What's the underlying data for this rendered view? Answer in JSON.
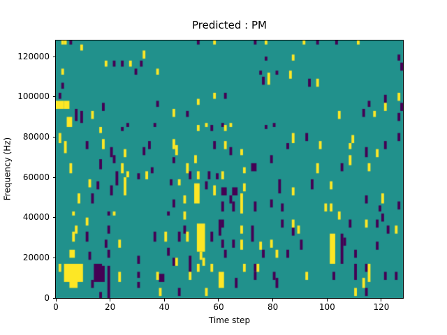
{
  "chart_data": {
    "type": "heatmap",
    "title": "Predicted : PM",
    "xlabel": "Time step",
    "ylabel": "Frequency (Hz)",
    "x_ticks": [
      0,
      20,
      40,
      60,
      80,
      100,
      120
    ],
    "y_ticks": [
      0,
      20000,
      40000,
      60000,
      80000,
      100000,
      120000
    ],
    "x_max": 128,
    "y_max": 128000,
    "n_time_steps": 128,
    "n_freq_bins": 128,
    "freq_bin_hz": 1000,
    "grid": false,
    "legend": "none",
    "colormap": "viridis",
    "colors": {
      "background": "#21918c",
      "low": "#440154",
      "high": "#fde725"
    },
    "cell_run_format": "[t_start, t_end, freq_bin_start, freq_bin_end] inclusive",
    "yellow_cells": [
      [
        2,
        2,
        126,
        127
      ],
      [
        3,
        3,
        126,
        127
      ],
      [
        9,
        9,
        123,
        125
      ],
      [
        32,
        32,
        119,
        122
      ],
      [
        18,
        18,
        115,
        117
      ],
      [
        27,
        27,
        115,
        117
      ],
      [
        2,
        2,
        111,
        113
      ],
      [
        37,
        37,
        111,
        113
      ],
      [
        0,
        2,
        94,
        97
      ],
      [
        3,
        4,
        94,
        97
      ],
      [
        13,
        13,
        89,
        92
      ],
      [
        4,
        5,
        85,
        89
      ],
      [
        58,
        58,
        126,
        127
      ],
      [
        77,
        77,
        126,
        127
      ],
      [
        78,
        78,
        106,
        111
      ],
      [
        58,
        58,
        99,
        101
      ],
      [
        52,
        52,
        96,
        98
      ],
      [
        43,
        43,
        90,
        93
      ],
      [
        55,
        55,
        85,
        86
      ],
      [
        64,
        64,
        85,
        86
      ],
      [
        91,
        91,
        126,
        127
      ],
      [
        111,
        111,
        126,
        127
      ],
      [
        87,
        87,
        118,
        120
      ],
      [
        86,
        86,
        109,
        112
      ],
      [
        96,
        96,
        105,
        108
      ],
      [
        126,
        126,
        98,
        101
      ],
      [
        121,
        121,
        93,
        96
      ],
      [
        117,
        117,
        90,
        92
      ],
      [
        104,
        104,
        89,
        92
      ],
      [
        16,
        16,
        82,
        84
      ],
      [
        1,
        1,
        77,
        81
      ],
      [
        3,
        3,
        72,
        77
      ],
      [
        17,
        17,
        74,
        78
      ],
      [
        25,
        25,
        70,
        73
      ],
      [
        5,
        5,
        62,
        66
      ],
      [
        24,
        24,
        62,
        66
      ],
      [
        26,
        26,
        60,
        62
      ],
      [
        33,
        33,
        59,
        62
      ],
      [
        12,
        12,
        55,
        58
      ],
      [
        25,
        25,
        51,
        59
      ],
      [
        8,
        8,
        47,
        51
      ],
      [
        52,
        52,
        83,
        85
      ],
      [
        62,
        62,
        83,
        85
      ],
      [
        43,
        43,
        74,
        78
      ],
      [
        44,
        44,
        71,
        75
      ],
      [
        62,
        62,
        74,
        77
      ],
      [
        68,
        68,
        71,
        73
      ],
      [
        51,
        51,
        67,
        70
      ],
      [
        48,
        48,
        62,
        66
      ],
      [
        69,
        69,
        62,
        64
      ],
      [
        52,
        52,
        59,
        62
      ],
      [
        61,
        61,
        59,
        62
      ],
      [
        45,
        45,
        56,
        58
      ],
      [
        69,
        69,
        53,
        56
      ],
      [
        58,
        58,
        51,
        55
      ],
      [
        68,
        68,
        42,
        51
      ],
      [
        47,
        47,
        47,
        50
      ],
      [
        51,
        52,
        47,
        56
      ],
      [
        87,
        87,
        77,
        81
      ],
      [
        97,
        97,
        74,
        77
      ],
      [
        109,
        109,
        77,
        80
      ],
      [
        108,
        108,
        74,
        76
      ],
      [
        118,
        118,
        70,
        73
      ],
      [
        108,
        108,
        66,
        70
      ],
      [
        96,
        96,
        62,
        66
      ],
      [
        115,
        115,
        63,
        66
      ],
      [
        101,
        101,
        54,
        57
      ],
      [
        87,
        87,
        51,
        54
      ],
      [
        120,
        120,
        47,
        51
      ],
      [
        99,
        99,
        43,
        46
      ],
      [
        101,
        101,
        43,
        46
      ],
      [
        6,
        6,
        41,
        42
      ],
      [
        21,
        21,
        41,
        42
      ],
      [
        11,
        11,
        36,
        39
      ],
      [
        7,
        7,
        32,
        35
      ],
      [
        6,
        6,
        28,
        32
      ],
      [
        40,
        40,
        28,
        32
      ],
      [
        23,
        23,
        25,
        28
      ],
      [
        5,
        6,
        20,
        23
      ],
      [
        1,
        1,
        13,
        16
      ],
      [
        3,
        9,
        8,
        16
      ],
      [
        5,
        7,
        5,
        8
      ],
      [
        23,
        23,
        8,
        12
      ],
      [
        37,
        37,
        9,
        12
      ],
      [
        38,
        38,
        1,
        4
      ],
      [
        47,
        47,
        39,
        42
      ],
      [
        48,
        48,
        28,
        32
      ],
      [
        68,
        68,
        32,
        35
      ],
      [
        68,
        68,
        24,
        28
      ],
      [
        75,
        75,
        24,
        27
      ],
      [
        79,
        79,
        25,
        28
      ],
      [
        81,
        81,
        20,
        23
      ],
      [
        44,
        44,
        16,
        19
      ],
      [
        52,
        54,
        23,
        36
      ],
      [
        53,
        53,
        19,
        22
      ],
      [
        54,
        54,
        16,
        19
      ],
      [
        52,
        52,
        13,
        16
      ],
      [
        57,
        57,
        13,
        16
      ],
      [
        69,
        69,
        13,
        16
      ],
      [
        74,
        74,
        13,
        16
      ],
      [
        49,
        49,
        9,
        12
      ],
      [
        60,
        61,
        5,
        12
      ],
      [
        55,
        55,
        1,
        4
      ],
      [
        104,
        104,
        39,
        42
      ],
      [
        87,
        87,
        35,
        38
      ],
      [
        89,
        89,
        32,
        35
      ],
      [
        114,
        114,
        35,
        38
      ],
      [
        125,
        125,
        32,
        35
      ],
      [
        101,
        102,
        17,
        31
      ],
      [
        92,
        92,
        9,
        12
      ],
      [
        115,
        115,
        8,
        16
      ],
      [
        113,
        113,
        5,
        9
      ],
      [
        110,
        110,
        1,
        4
      ]
    ],
    "purple_cells": [
      [
        5,
        5,
        126,
        127
      ],
      [
        21,
        21,
        115,
        117
      ],
      [
        24,
        24,
        115,
        117
      ],
      [
        31,
        31,
        115,
        117
      ],
      [
        29,
        29,
        111,
        113
      ],
      [
        2,
        2,
        104,
        106
      ],
      [
        1,
        1,
        99,
        101
      ],
      [
        17,
        17,
        93,
        96
      ],
      [
        7,
        7,
        88,
        93
      ],
      [
        9,
        9,
        87,
        92
      ],
      [
        37,
        37,
        95,
        97
      ],
      [
        26,
        26,
        85,
        86
      ],
      [
        36,
        36,
        85,
        86
      ],
      [
        52,
        52,
        126,
        127
      ],
      [
        73,
        73,
        126,
        127
      ],
      [
        77,
        77,
        118,
        119
      ],
      [
        75,
        75,
        111,
        112
      ],
      [
        81,
        81,
        111,
        112
      ],
      [
        76,
        76,
        106,
        109
      ],
      [
        62,
        62,
        99,
        101
      ],
      [
        48,
        48,
        90,
        92
      ],
      [
        61,
        61,
        85,
        86
      ],
      [
        80,
        80,
        85,
        86
      ],
      [
        96,
        96,
        126,
        127
      ],
      [
        103,
        103,
        126,
        127
      ],
      [
        126,
        126,
        118,
        120
      ],
      [
        127,
        127,
        113,
        116
      ],
      [
        93,
        93,
        105,
        108
      ],
      [
        121,
        121,
        97,
        100
      ],
      [
        115,
        115,
        95,
        97
      ],
      [
        113,
        113,
        90,
        93
      ],
      [
        127,
        127,
        93,
        96
      ],
      [
        126,
        126,
        88,
        91
      ],
      [
        24,
        24,
        83,
        84
      ],
      [
        11,
        11,
        74,
        77
      ],
      [
        20,
        20,
        70,
        74
      ],
      [
        32,
        32,
        71,
        74
      ],
      [
        34,
        34,
        74,
        77
      ],
      [
        21,
        21,
        67,
        70
      ],
      [
        16,
        16,
        64,
        68
      ],
      [
        35,
        35,
        62,
        64
      ],
      [
        22,
        22,
        56,
        62
      ],
      [
        30,
        30,
        59,
        61
      ],
      [
        15,
        15,
        54,
        57
      ],
      [
        42,
        42,
        56,
        58
      ],
      [
        20,
        20,
        51,
        55
      ],
      [
        13,
        13,
        47,
        51
      ],
      [
        57,
        57,
        83,
        85
      ],
      [
        77,
        77,
        84,
        85
      ],
      [
        58,
        58,
        74,
        77
      ],
      [
        64,
        64,
        71,
        74
      ],
      [
        43,
        43,
        67,
        69
      ],
      [
        79,
        79,
        67,
        70
      ],
      [
        72,
        73,
        63,
        66
      ],
      [
        49,
        49,
        59,
        62
      ],
      [
        56,
        56,
        59,
        62
      ],
      [
        59,
        59,
        59,
        61
      ],
      [
        55,
        55,
        54,
        57
      ],
      [
        82,
        82,
        52,
        58
      ],
      [
        61,
        62,
        51,
        54
      ],
      [
        65,
        66,
        51,
        54
      ],
      [
        64,
        64,
        47,
        50
      ],
      [
        43,
        43,
        45,
        48
      ],
      [
        61,
        61,
        43,
        47
      ],
      [
        65,
        65,
        43,
        47
      ],
      [
        73,
        73,
        43,
        47
      ],
      [
        79,
        79,
        45,
        48
      ],
      [
        83,
        83,
        43,
        46
      ],
      [
        92,
        92,
        78,
        81
      ],
      [
        126,
        126,
        78,
        81
      ],
      [
        85,
        85,
        74,
        76
      ],
      [
        121,
        121,
        74,
        77
      ],
      [
        114,
        114,
        70,
        74
      ],
      [
        105,
        105,
        63,
        66
      ],
      [
        94,
        94,
        54,
        58
      ],
      [
        114,
        114,
        47,
        50
      ],
      [
        119,
        119,
        43,
        45
      ],
      [
        126,
        126,
        44,
        47
      ],
      [
        19,
        19,
        41,
        42
      ],
      [
        41,
        41,
        41,
        42
      ],
      [
        19,
        19,
        32,
        35
      ],
      [
        11,
        11,
        28,
        32
      ],
      [
        36,
        36,
        28,
        32
      ],
      [
        18,
        18,
        25,
        28
      ],
      [
        41,
        41,
        21,
        24
      ],
      [
        12,
        12,
        19,
        22
      ],
      [
        19,
        19,
        20,
        23
      ],
      [
        30,
        30,
        17,
        20
      ],
      [
        14,
        16,
        8,
        16
      ],
      [
        17,
        17,
        8,
        15
      ],
      [
        19,
        19,
        0,
        15
      ],
      [
        30,
        30,
        10,
        12
      ],
      [
        13,
        13,
        5,
        8
      ],
      [
        30,
        30,
        5,
        7
      ],
      [
        38,
        39,
        8,
        11
      ],
      [
        16,
        16,
        0,
        2
      ],
      [
        60,
        60,
        31,
        38
      ],
      [
        61,
        61,
        35,
        38
      ],
      [
        83,
        83,
        35,
        38
      ],
      [
        47,
        47,
        32,
        35
      ],
      [
        45,
        45,
        28,
        32
      ],
      [
        57,
        57,
        28,
        32
      ],
      [
        72,
        72,
        28,
        35
      ],
      [
        61,
        61,
        25,
        28
      ],
      [
        65,
        65,
        25,
        28
      ],
      [
        62,
        62,
        20,
        23
      ],
      [
        76,
        76,
        20,
        23
      ],
      [
        43,
        43,
        16,
        19
      ],
      [
        49,
        49,
        13,
        20
      ],
      [
        73,
        73,
        13,
        16
      ],
      [
        73,
        73,
        9,
        12
      ],
      [
        80,
        80,
        9,
        12
      ],
      [
        81,
        81,
        5,
        9
      ],
      [
        66,
        66,
        5,
        9
      ],
      [
        45,
        45,
        1,
        4
      ],
      [
        87,
        87,
        31,
        34
      ],
      [
        108,
        108,
        35,
        38
      ],
      [
        118,
        118,
        35,
        38
      ],
      [
        120,
        120,
        38,
        41
      ],
      [
        122,
        122,
        32,
        35
      ],
      [
        90,
        90,
        24,
        28
      ],
      [
        85,
        85,
        20,
        23
      ],
      [
        105,
        105,
        17,
        31
      ],
      [
        106,
        106,
        26,
        29
      ],
      [
        110,
        110,
        20,
        23
      ],
      [
        118,
        118,
        24,
        27
      ],
      [
        110,
        110,
        9,
        16
      ],
      [
        114,
        114,
        13,
        16
      ],
      [
        102,
        102,
        9,
        12
      ],
      [
        121,
        121,
        9,
        12
      ],
      [
        125,
        125,
        9,
        12
      ],
      [
        114,
        114,
        1,
        4
      ]
    ]
  }
}
